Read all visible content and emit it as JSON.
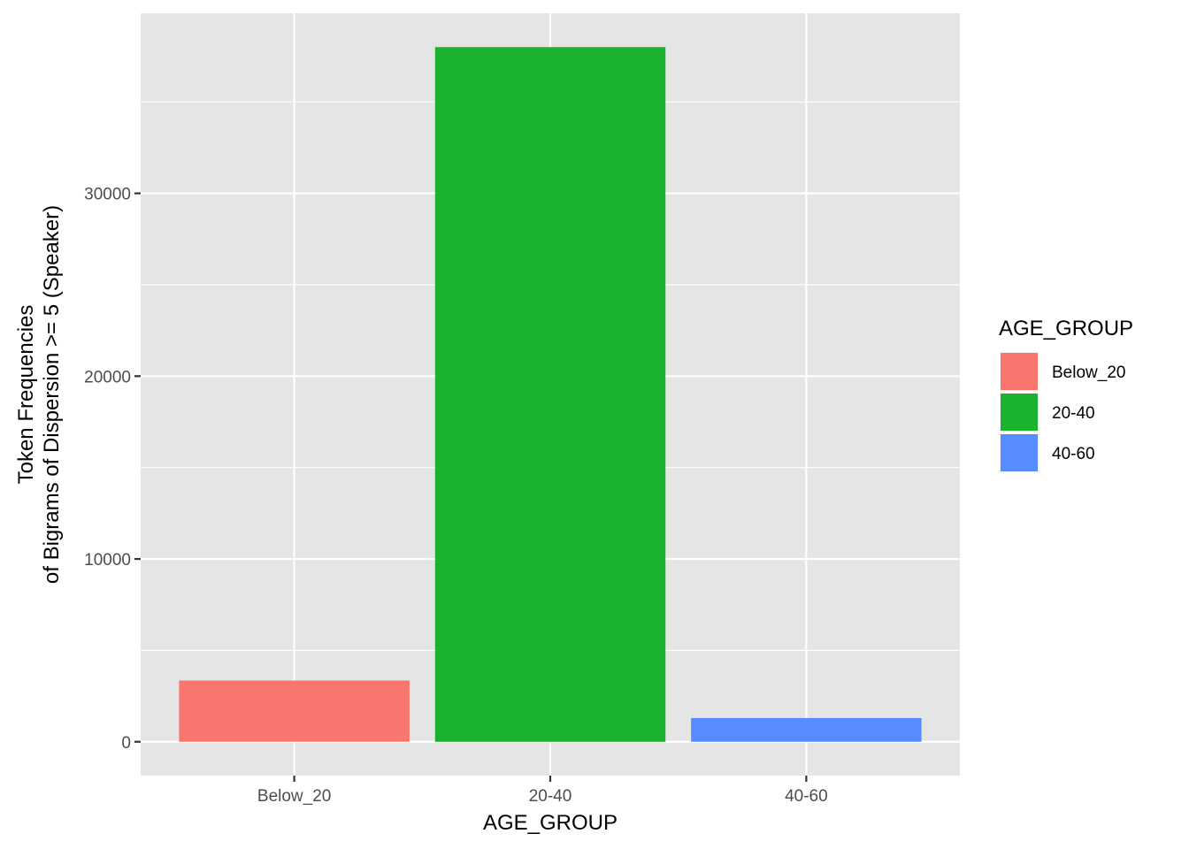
{
  "chart_data": {
    "type": "bar",
    "categories": [
      "Below_20",
      "20-40",
      "40-60"
    ],
    "values": [
      3350,
      38000,
      1300
    ],
    "colors": [
      "#F8766D",
      "#1AB22E",
      "#568CFF"
    ],
    "xlabel": "AGE_GROUP",
    "ylabel_lines": [
      "Token Frequencies",
      "of Bigrams of Dispersion >= 5 (Speaker)"
    ],
    "ylim": [
      -1850,
      39850
    ],
    "yticks": [
      0,
      10000,
      20000,
      30000
    ],
    "ytick_labels": [
      "0",
      "10000",
      "20000",
      "30000"
    ],
    "grid": true,
    "legend": {
      "title": "AGE_GROUP",
      "position": "right",
      "items": [
        "Below_20",
        "20-40",
        "40-60"
      ]
    },
    "panel_background": "#E5E5E5",
    "grid_color": "#FFFFFF"
  }
}
